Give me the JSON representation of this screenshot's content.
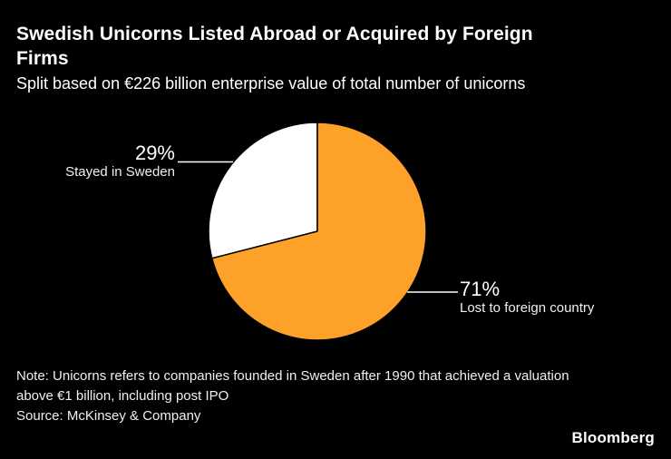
{
  "header": {
    "title_lines": [
      "Swedish Unicorns Listed Abroad or Acquired by Foreign",
      "Firms"
    ],
    "subtitle": "Split based on €226 billion enterprise value of total number of unicorns"
  },
  "chart_data": {
    "type": "pie",
    "title": "Swedish Unicorns Listed Abroad or Acquired by Foreign Firms",
    "subtitle": "Split based on €226 billion enterprise value of total number of unicorns",
    "unit": "%",
    "start_angle": "12-o-clock",
    "first_slice_direction": "counterclockwise",
    "slices": [
      {
        "label": "Stayed in Sweden",
        "value": 29,
        "pct_label": "29%",
        "color": "#FFFFFF"
      },
      {
        "label": "Lost to foreign country",
        "value": 71,
        "pct_label": "71%",
        "color": "#FDA129"
      }
    ]
  },
  "footer": {
    "note_lines": [
      "Note: Unicorns refers to companies founded in Sweden after 1990 that achieved a valuation",
      "above €1 billion, including post IPO"
    ],
    "source": "Source: McKinsey & Company",
    "brand": "Bloomberg"
  },
  "colors": {
    "background": "#000000",
    "text": "#FFFFFF",
    "slice_stayed": "#FFFFFF",
    "slice_lost": "#FDA129",
    "slice_divider": "#000000"
  }
}
